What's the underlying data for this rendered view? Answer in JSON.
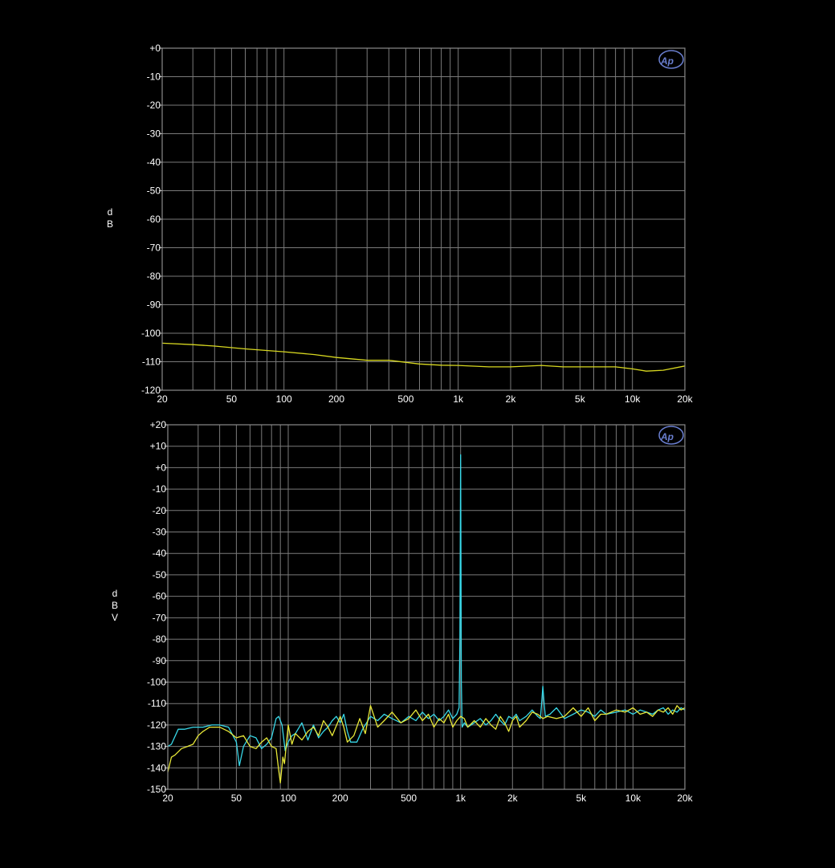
{
  "chart_data": [
    {
      "type": "line",
      "ylabel": "dB",
      "ylim": [
        -120,
        0
      ],
      "xlim": [
        20,
        20000
      ],
      "x_scale": "log",
      "grid": true,
      "logo": "Ap",
      "y_ticks": [
        0,
        -10,
        -20,
        -30,
        -40,
        -50,
        -60,
        -70,
        -80,
        -90,
        -100,
        -110,
        -120
      ],
      "y_tick_labels": [
        "+0",
        "-10",
        "-20",
        "-30",
        "-40",
        "-50",
        "-60",
        "-70",
        "-80",
        "-90",
        "-100",
        "-110",
        "-120"
      ],
      "x_ticks": [
        20,
        50,
        100,
        200,
        500,
        1000,
        2000,
        5000,
        10000,
        20000
      ],
      "x_tick_labels": [
        "20",
        "50",
        "100",
        "200",
        "500",
        "1k",
        "2k",
        "5k",
        "10k",
        "20k"
      ],
      "series": [
        {
          "color": "#d8d820",
          "x": [
            20,
            30,
            40,
            60,
            100,
            150,
            200,
            300,
            400,
            600,
            800,
            1000,
            1500,
            2000,
            3000,
            4000,
            5000,
            6000,
            8000,
            10000,
            12000,
            15000,
            20000
          ],
          "y": [
            -103.5,
            -104,
            -104.5,
            -105.5,
            -106.5,
            -107.5,
            -108.5,
            -109.5,
            -109.5,
            -110.8,
            -111.2,
            -111.3,
            -111.8,
            -111.8,
            -111.3,
            -111.8,
            -111.8,
            -111.8,
            -111.8,
            -112.5,
            -113.3,
            -113.0,
            -111.5
          ]
        }
      ]
    },
    {
      "type": "line",
      "ylabel": "dBV",
      "ylim": [
        -150,
        20
      ],
      "xlim": [
        20,
        20000
      ],
      "x_scale": "log",
      "grid": true,
      "logo": "Ap",
      "y_ticks": [
        20,
        10,
        0,
        -10,
        -20,
        -30,
        -40,
        -50,
        -60,
        -70,
        -80,
        -90,
        -100,
        -110,
        -120,
        -130,
        -140,
        -150
      ],
      "y_tick_labels": [
        "+20",
        "+10",
        "+0",
        "-10",
        "-20",
        "-30",
        "-40",
        "-50",
        "-60",
        "-70",
        "-80",
        "-90",
        "-100",
        "-110",
        "-120",
        "-130",
        "-140",
        "-150"
      ],
      "x_ticks": [
        20,
        50,
        100,
        200,
        500,
        1000,
        2000,
        5000,
        10000,
        20000
      ],
      "x_tick_labels": [
        "20",
        "50",
        "100",
        "200",
        "500",
        "1k",
        "2k",
        "5k",
        "10k",
        "20k"
      ],
      "series": [
        {
          "color": "#38d8e8",
          "x": [
            20,
            21,
            23,
            25,
            28,
            32,
            36,
            40,
            45,
            50,
            52,
            55,
            60,
            65,
            70,
            75,
            80,
            85,
            88,
            92,
            96,
            100,
            105,
            110,
            120,
            130,
            140,
            150,
            160,
            170,
            180,
            190,
            200,
            210,
            220,
            230,
            250,
            270,
            300,
            330,
            360,
            400,
            450,
            500,
            550,
            600,
            650,
            700,
            750,
            800,
            850,
            900,
            950,
            980,
            990,
            1000,
            1005,
            1010,
            1020,
            1050,
            1100,
            1200,
            1300,
            1400,
            1500,
            1600,
            1700,
            1800,
            1900,
            2000,
            2100,
            2200,
            2400,
            2600,
            2800,
            2900,
            2950,
            3000,
            3050,
            3100,
            3300,
            3600,
            4000,
            4500,
            5000,
            5500,
            6000,
            6500,
            7000,
            8000,
            9000,
            10000,
            11000,
            12000,
            13000,
            14000,
            15000,
            16000,
            17000,
            18000,
            19000,
            20000
          ],
          "y": [
            -130,
            -129,
            -122,
            -122,
            -121,
            -121,
            -120,
            -120,
            -121,
            -128,
            -139,
            -130,
            -125,
            -126,
            -131,
            -129,
            -126,
            -117,
            -116,
            -120,
            -132,
            -128,
            -125,
            -124,
            -119,
            -127,
            -120,
            -126,
            -123,
            -121,
            -118,
            -116,
            -119,
            -115,
            -123,
            -128,
            -128,
            -122,
            -116,
            -118,
            -115,
            -117,
            -119,
            -116,
            -118,
            -114,
            -117,
            -115,
            -118,
            -116,
            -113,
            -117,
            -115,
            -112,
            -80,
            6,
            -50,
            -100,
            -121,
            -119,
            -121,
            -119,
            -117,
            -120,
            -118,
            -115,
            -118,
            -120,
            -116,
            -117,
            -115,
            -118,
            -116,
            -113,
            -116,
            -117,
            -110,
            -102,
            -110,
            -116,
            -115,
            -112,
            -117,
            -115,
            -113,
            -114,
            -116,
            -113,
            -115,
            -114,
            -113,
            -115,
            -113,
            -114,
            -115,
            -113,
            -112,
            -115,
            -113,
            -114,
            -112,
            -113
          ]
        },
        {
          "color": "#e8e838",
          "x": [
            20,
            21,
            22,
            24,
            26,
            28,
            30,
            32,
            35,
            38,
            40,
            45,
            50,
            55,
            60,
            65,
            70,
            75,
            80,
            85,
            88,
            90,
            93,
            95,
            100,
            105,
            110,
            120,
            130,
            140,
            150,
            160,
            170,
            180,
            200,
            210,
            220,
            240,
            260,
            280,
            300,
            330,
            360,
            400,
            450,
            500,
            550,
            600,
            650,
            700,
            750,
            800,
            850,
            900,
            950,
            1000,
            1050,
            1100,
            1200,
            1300,
            1400,
            1500,
            1600,
            1700,
            1800,
            1900,
            2000,
            2100,
            2200,
            2400,
            2600,
            2800,
            3000,
            3200,
            3600,
            4000,
            4500,
            5000,
            5500,
            6000,
            6500,
            7000,
            8000,
            9000,
            10000,
            11000,
            12000,
            13000,
            14000,
            15000,
            16000,
            17000,
            18000,
            19000,
            20000
          ],
          "y": [
            -142,
            -135,
            -134,
            -131,
            -130,
            -129,
            -125,
            -123,
            -121,
            -121,
            -121,
            -123,
            -126,
            -125,
            -130,
            -131,
            -128,
            -126,
            -130,
            -131,
            -141,
            -147,
            -135,
            -138,
            -120,
            -129,
            -124,
            -127,
            -123,
            -121,
            -125,
            -118,
            -121,
            -125,
            -116,
            -121,
            -128,
            -125,
            -117,
            -124,
            -111,
            -121,
            -118,
            -114,
            -119,
            -117,
            -113,
            -118,
            -115,
            -121,
            -117,
            -119,
            -115,
            -121,
            -118,
            -116,
            -117,
            -121,
            -118,
            -121,
            -117,
            -120,
            -122,
            -116,
            -119,
            -123,
            -118,
            -116,
            -121,
            -118,
            -114,
            -115,
            -117,
            -116,
            -117,
            -116,
            -112,
            -116,
            -112,
            -118,
            -115,
            -115,
            -113,
            -114,
            -112,
            -115,
            -114,
            -116,
            -113,
            -114,
            -112,
            -115,
            -111,
            -113,
            -112
          ]
        }
      ]
    }
  ]
}
